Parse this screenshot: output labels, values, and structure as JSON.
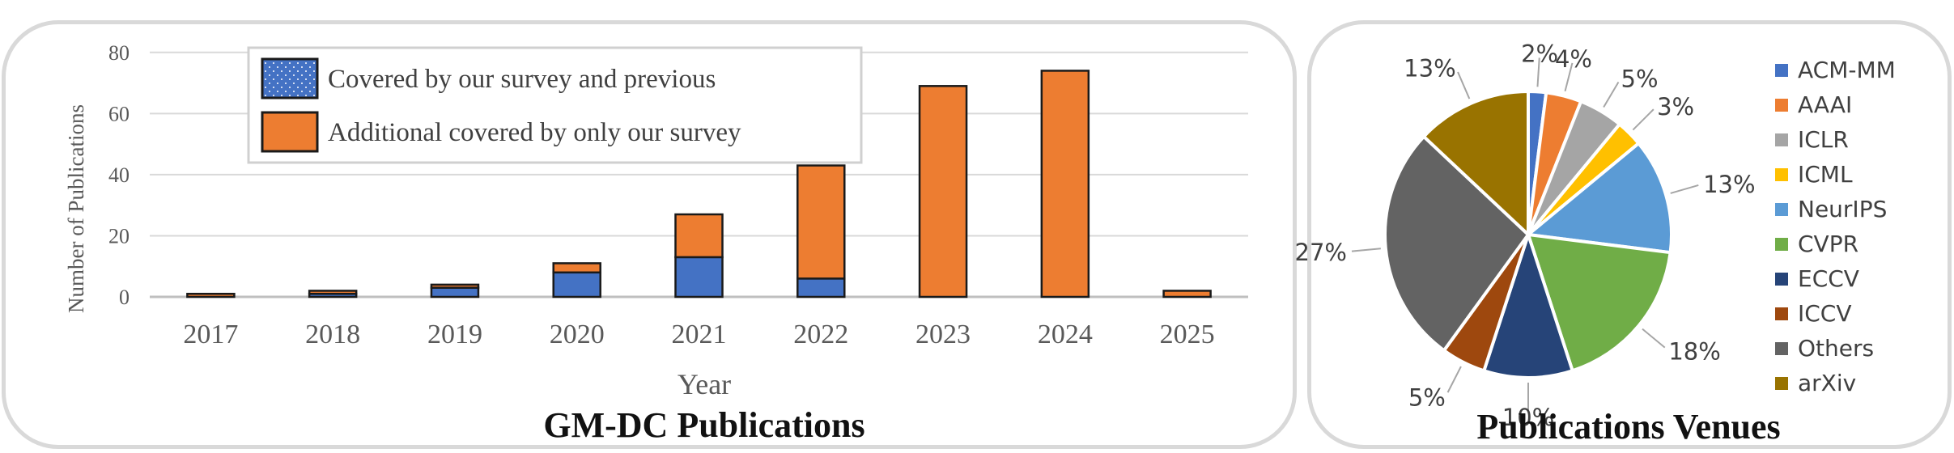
{
  "colors": {
    "covered": "#4472C4",
    "additional": "#ED7D31",
    "grid": "#d9d9d9",
    "axis": "#bfbfbf",
    "text": "#595959",
    "title": "#111111"
  },
  "chart_data": [
    {
      "type": "bar",
      "stacked": true,
      "title": "GM-DC Publications",
      "xlabel": "Year",
      "ylabel": "Number of Publications",
      "ylim": [
        0,
        90
      ],
      "yticks": [
        0,
        20,
        40,
        60,
        80
      ],
      "grid": true,
      "legend_position": "top-left",
      "categories": [
        "2017",
        "2018",
        "2019",
        "2020",
        "2021",
        "2022",
        "2023",
        "2024",
        "2025"
      ],
      "series": [
        {
          "name": "Covered by our survey and previous",
          "color": "#4472C4",
          "values": [
            0,
            1,
            3,
            8,
            13,
            6,
            0,
            0,
            0
          ]
        },
        {
          "name": "Additional covered by only our survey",
          "color": "#ED7D31",
          "values": [
            1,
            1,
            1,
            3,
            14,
            37,
            69,
            74,
            2
          ]
        }
      ]
    },
    {
      "type": "pie",
      "title": "Publications Venues",
      "legend_position": "right",
      "slices": [
        {
          "label": "ACM-MM",
          "value": 2,
          "pct_label": "2%",
          "color": "#4472C4"
        },
        {
          "label": "AAAI",
          "value": 4,
          "pct_label": "4%",
          "color": "#ED7D31"
        },
        {
          "label": "ICLR",
          "value": 5,
          "pct_label": "5%",
          "color": "#A5A5A5"
        },
        {
          "label": "ICML",
          "value": 3,
          "pct_label": "3%",
          "color": "#FFC000"
        },
        {
          "label": "NeurIPS",
          "value": 13,
          "pct_label": "13%",
          "color": "#5B9BD5"
        },
        {
          "label": "CVPR",
          "value": 18,
          "pct_label": "18%",
          "color": "#70AD47"
        },
        {
          "label": "ECCV",
          "value": 10,
          "pct_label": "10%",
          "color": "#264478"
        },
        {
          "label": "ICCV",
          "value": 5,
          "pct_label": "5%",
          "color": "#9E480E"
        },
        {
          "label": "Others",
          "value": 27,
          "pct_label": "27%",
          "color": "#636363"
        },
        {
          "label": "arXiv",
          "value": 13,
          "pct_label": "13%",
          "color": "#997300"
        }
      ]
    }
  ]
}
